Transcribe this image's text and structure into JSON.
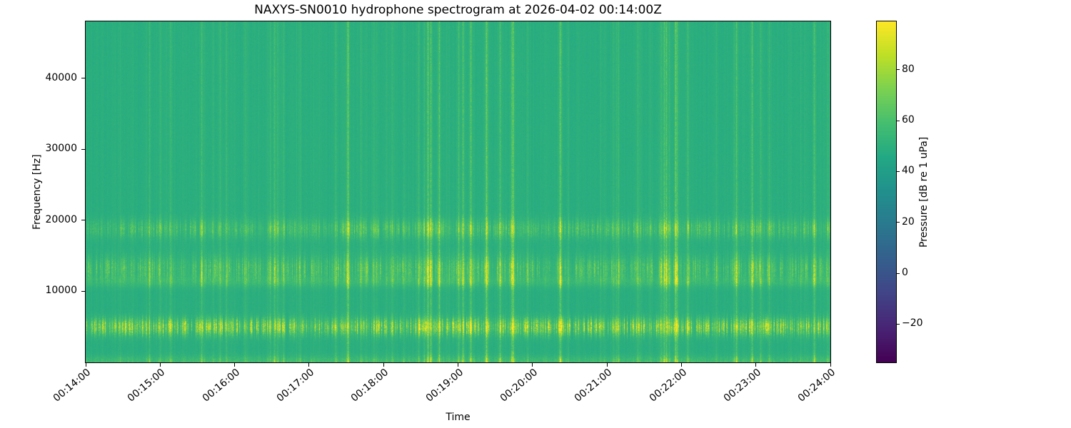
{
  "chart_data": {
    "type": "heatmap",
    "title": "NAXYS-SN0010 hydrophone spectrogram at 2026-04-02 00:14:00Z",
    "xlabel": "Time",
    "ylabel": "Frequency [Hz]",
    "colormap": "viridis",
    "x_ticks": [
      "00:14:00",
      "00:15:00",
      "00:16:00",
      "00:17:00",
      "00:18:00",
      "00:19:00",
      "00:20:00",
      "00:21:00",
      "00:22:00",
      "00:23:00",
      "00:24:00"
    ],
    "y_ticks": [
      {
        "value": 10000,
        "label": "10000"
      },
      {
        "value": 20000,
        "label": "20000"
      },
      {
        "value": 30000,
        "label": "30000"
      },
      {
        "value": 40000,
        "label": "40000"
      }
    ],
    "freq_range_hz": [
      0,
      48000
    ],
    "time_range": [
      "00:14:00",
      "00:24:00"
    ],
    "colorbar": {
      "label": "Pressure [dB re 1 uPa]",
      "ticks": [
        {
          "value": 80,
          "label": "80"
        },
        {
          "value": 60,
          "label": "60"
        },
        {
          "value": 40,
          "label": "40"
        },
        {
          "value": 20,
          "label": "20"
        },
        {
          "value": 0,
          "label": "0"
        },
        {
          "value": -20,
          "label": "−20"
        }
      ],
      "vmin": -35,
      "vmax": 99
    },
    "background_level_db": 49,
    "noise_seed": 1337,
    "horizontal_bands": [
      {
        "center_hz": 5000,
        "half_width_hz": 800,
        "peak_db": 20,
        "speckle": 0.85,
        "note": "strong intermittent tonal band with bright impulses"
      },
      {
        "center_hz": 13200,
        "half_width_hz": 1200,
        "peak_db": 9,
        "speckle": 0.8,
        "note": "dense speckled band"
      },
      {
        "center_hz": 18800,
        "half_width_hz": 900,
        "peak_db": 8,
        "speckle": 0.8,
        "note": "speckled band"
      },
      {
        "center_hz": 11400,
        "half_width_hz": 550,
        "peak_db": 4.5,
        "speckle": 0.1,
        "note": "faint continuous pale strip"
      },
      {
        "center_hz": 0,
        "half_width_hz": 600,
        "peak_db": 8,
        "speckle": 0.25,
        "note": "bright low-frequency bottom edge"
      }
    ],
    "vertical_transients": {
      "max_db": 45,
      "tail_exponent": 20,
      "note": "broadband click/impulse streaks at irregular times across all frequencies"
    }
  }
}
